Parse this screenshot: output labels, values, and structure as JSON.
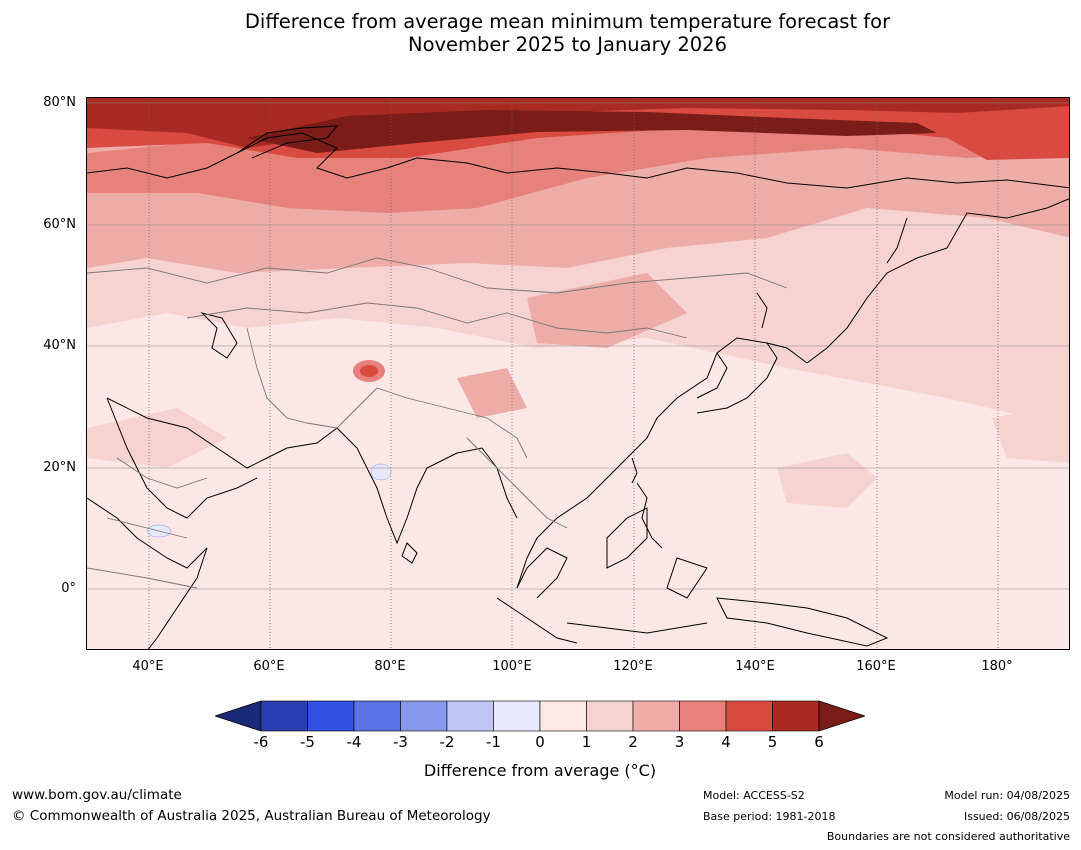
{
  "title": {
    "line1": "Difference from average mean minimum temperature forecast for",
    "line2": "November 2025 to January 2026"
  },
  "axes": {
    "lat_labels": [
      "80°N",
      "60°N",
      "40°N",
      "20°N",
      "0°"
    ],
    "lon_labels": [
      "40°E",
      "60°E",
      "80°E",
      "100°E",
      "120°E",
      "140°E",
      "160°E",
      "180°"
    ]
  },
  "colorbar": {
    "ticks": [
      "-6",
      "-5",
      "-4",
      "-3",
      "-2",
      "-1",
      "0",
      "1",
      "2",
      "3",
      "4",
      "5",
      "6"
    ],
    "colors": [
      "#1b2a78",
      "#2a3db0",
      "#3150df",
      "#5c74e6",
      "#8898ec",
      "#bfc6f4",
      "#e7e9fa",
      "#fce9e7",
      "#f6d3d0",
      "#eeaca8",
      "#e6817b",
      "#d94a40",
      "#a82a22",
      "#7a1c18"
    ],
    "label": "Difference from average (°C)"
  },
  "footer": {
    "website": "www.bom.gov.au/climate",
    "copyright": "© Commonwealth of Australia 2025, Australian Bureau of Meteorology",
    "model": "Model: ACCESS-S2",
    "base_period": "Base period: 1981-2018",
    "model_run": "Model run: 04/08/2025",
    "issued": "Issued: 06/08/2025",
    "disclaimer": "Boundaries are not considered authoritative"
  }
}
